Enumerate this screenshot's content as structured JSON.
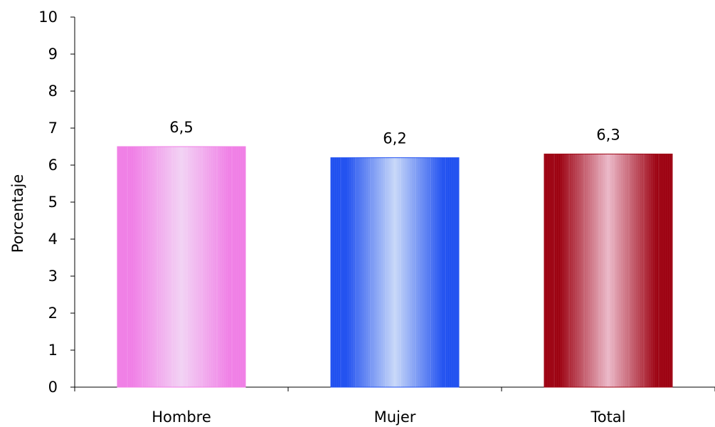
{
  "chart_data": {
    "type": "bar",
    "categories": [
      "Hombre",
      "Mujer",
      "Total"
    ],
    "values": [
      6.5,
      6.2,
      6.3
    ],
    "data_labels": [
      "6,5",
      "6,2",
      "6,3"
    ],
    "ylabel": "Porcentaje",
    "xlabel": "",
    "ylim": [
      0,
      10
    ],
    "yticks": [
      "0",
      "1",
      "2",
      "3",
      "4",
      "5",
      "6",
      "7",
      "8",
      "9",
      "10"
    ],
    "grid": false,
    "legend": "none",
    "bar_colors": [
      {
        "edge": "#f07ee6",
        "mid": "#f2d2f4"
      },
      {
        "edge": "#1f4ff0",
        "mid": "#c8d8f8"
      },
      {
        "edge": "#9c0010",
        "mid": "#ebb8c8"
      }
    ]
  }
}
